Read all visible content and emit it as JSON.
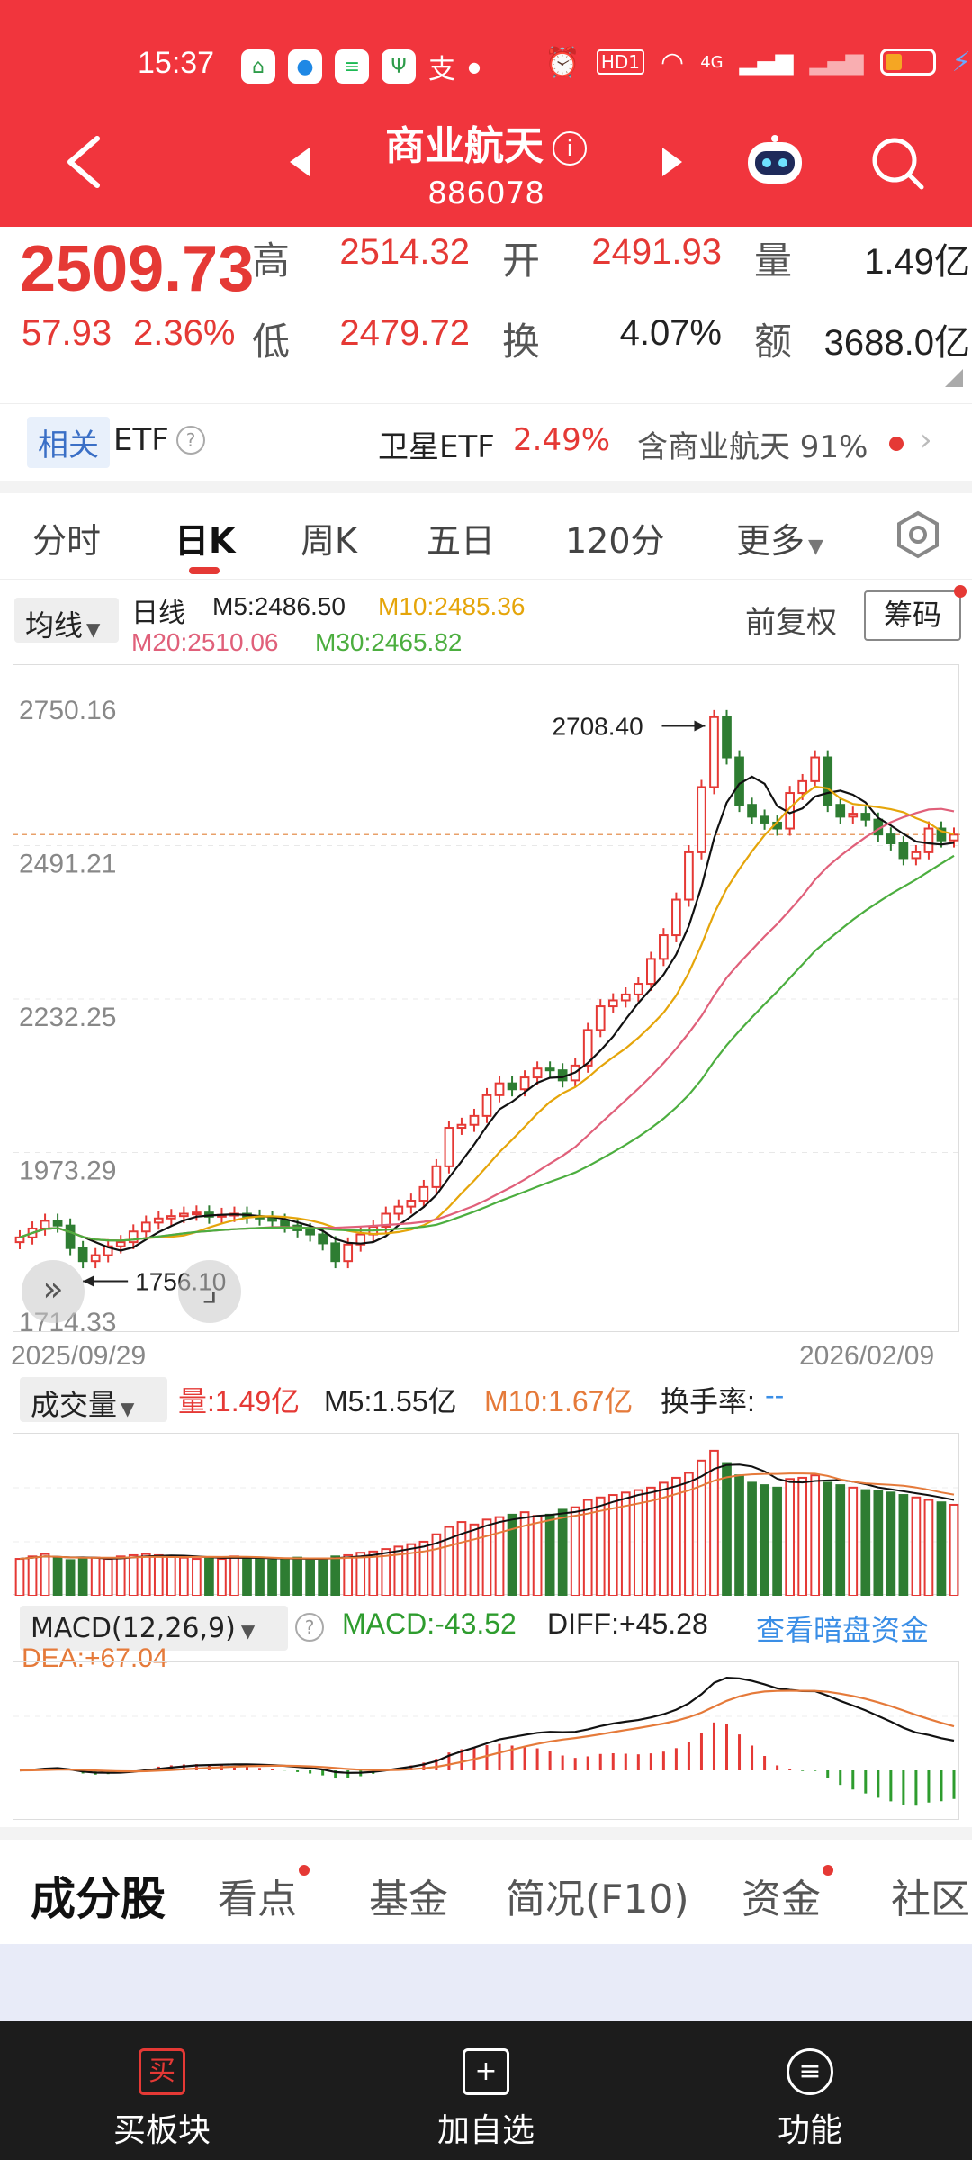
{
  "status": {
    "time": "15:37",
    "hd": "HD1",
    "net": "4G"
  },
  "nav": {
    "title": "商业航天",
    "code": "886078"
  },
  "quote": {
    "price": "2509.73",
    "change": "57.93",
    "change_pct": "2.36%",
    "labels": {
      "high": "高",
      "low": "低",
      "open": "开",
      "turnover": "换",
      "volume": "量",
      "amount": "额"
    },
    "high": "2514.32",
    "low": "2479.72",
    "open": "2491.93",
    "turnover": "4.07%",
    "volume": "1.49亿",
    "amount": "3688.0亿"
  },
  "etf": {
    "tag": "相关",
    "label": "ETF",
    "name": "卫星ETF",
    "pct": "2.49%",
    "holding": "含商业航天 91%"
  },
  "tabs": [
    "分时",
    "日K",
    "周K",
    "五日",
    "120分",
    "更多"
  ],
  "ma_legend": {
    "button": "均线",
    "type": "日线",
    "m5": "M5:2486.50",
    "m10": "M10:2485.36",
    "m20": "M20:2510.06",
    "m30": "M30:2465.82",
    "fq": "前复权",
    "chips": "筹码"
  },
  "chart_data": {
    "type": "candlestick",
    "y_ticks": [
      "2750.16",
      "2491.21",
      "2232.25",
      "1973.29",
      "1714.33"
    ],
    "ylim": [
      1714.33,
      2750.16
    ],
    "high_label": "2708.40",
    "low_label": "1756.10",
    "start_date": "2025/09/29",
    "end_date": "2026/02/09",
    "ma_colors": {
      "m5": "#111111",
      "m10": "#e5a50a",
      "m20": "#e0607a",
      "m30": "#4cae3f"
    },
    "close_series": [
      1830,
      1845,
      1858,
      1850,
      1812,
      1790,
      1800,
      1815,
      1822,
      1840,
      1855,
      1862,
      1866,
      1870,
      1872,
      1865,
      1868,
      1870,
      1865,
      1862,
      1858,
      1850,
      1842,
      1835,
      1820,
      1790,
      1818,
      1835,
      1848,
      1870,
      1882,
      1892,
      1915,
      1950,
      2015,
      2020,
      2035,
      2070,
      2090,
      2080,
      2100,
      2115,
      2112,
      2095,
      2120,
      2180,
      2220,
      2230,
      2240,
      2258,
      2300,
      2340,
      2400,
      2480,
      2590,
      2708,
      2640,
      2560,
      2540,
      2530,
      2520,
      2580,
      2600,
      2640,
      2560,
      2540,
      2545,
      2535,
      2510,
      2495,
      2470,
      2480,
      2520,
      2500,
      2509.73
    ],
    "volume": {
      "label": "成交量",
      "vol": "量:1.49亿",
      "m5": "M5:1.55亿",
      "m10": "M10:1.67亿",
      "turnover": "换手率:",
      "turnover_val": "--",
      "values": [
        30,
        32,
        34,
        31,
        29,
        30,
        31,
        30,
        32,
        33,
        34,
        33,
        32,
        31,
        30,
        31,
        30,
        32,
        31,
        30,
        29,
        30,
        31,
        30,
        30,
        32,
        33,
        35,
        36,
        38,
        40,
        42,
        44,
        50,
        56,
        60,
        58,
        62,
        64,
        66,
        68,
        65,
        66,
        70,
        72,
        78,
        80,
        82,
        84,
        86,
        88,
        92,
        96,
        100,
        110,
        118,
        108,
        98,
        92,
        90,
        88,
        95,
        96,
        98,
        92,
        90,
        88,
        86,
        85,
        84,
        82,
        80,
        78,
        76,
        74
      ]
    },
    "macd": {
      "label": "MACD(12,26,9)",
      "macd": "MACD:-43.52",
      "diff": "DIFF:+45.28",
      "dea": "DEA:+67.04",
      "link": "查看暗盘资金"
    }
  },
  "bottom_tabs": [
    "成分股",
    "看点",
    "基金",
    "简况(F10)",
    "资金",
    "社区"
  ],
  "footer": {
    "buy": "买板块",
    "buy_icon": "买",
    "add": "加自选",
    "func": "功能"
  }
}
